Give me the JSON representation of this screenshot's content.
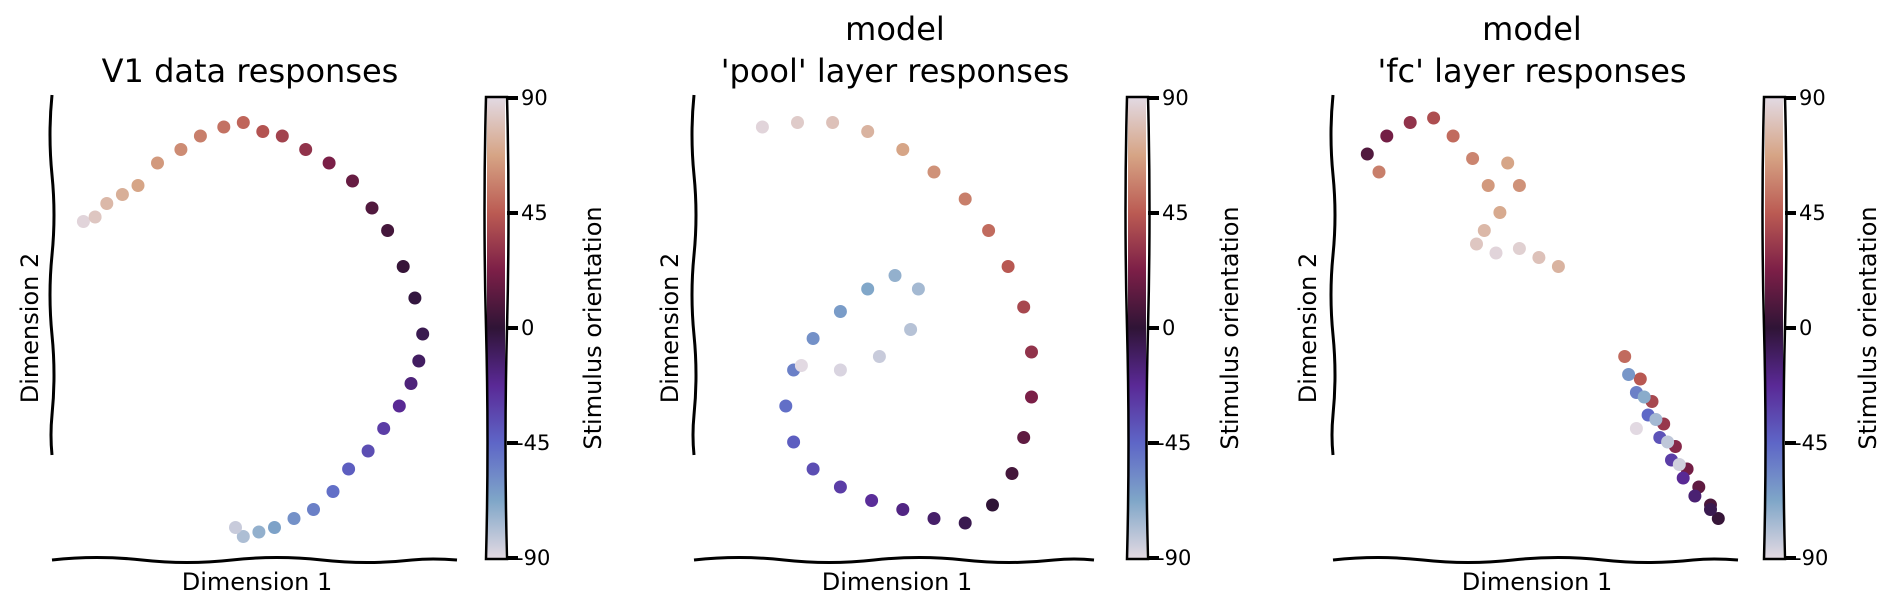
{
  "chart_data": [
    {
      "type": "scatter",
      "title": "V1 data responses",
      "xlabel": "Dimension 1",
      "ylabel": "Dimension 2",
      "colorbar": {
        "label": "Stimulus orientation",
        "ticks": [
          "90",
          "45",
          "0",
          "-45",
          "-90"
        ],
        "range": [
          -90,
          90
        ]
      },
      "xlim": [
        0,
        10
      ],
      "ylim": [
        0,
        10
      ],
      "points": [
        [
          0.6,
          7.3,
          88
        ],
        [
          0.9,
          7.4,
          82
        ],
        [
          1.2,
          7.7,
          76
        ],
        [
          1.6,
          7.9,
          72
        ],
        [
          2.0,
          8.1,
          68
        ],
        [
          2.5,
          8.6,
          64
        ],
        [
          3.1,
          8.9,
          60
        ],
        [
          3.6,
          9.2,
          56
        ],
        [
          4.2,
          9.4,
          52
        ],
        [
          4.7,
          9.5,
          48
        ],
        [
          5.2,
          9.3,
          42
        ],
        [
          5.7,
          9.2,
          36
        ],
        [
          6.3,
          8.9,
          30
        ],
        [
          6.9,
          8.6,
          22
        ],
        [
          7.5,
          8.2,
          16
        ],
        [
          8.0,
          7.6,
          10
        ],
        [
          8.4,
          7.1,
          6
        ],
        [
          8.8,
          6.3,
          2
        ],
        [
          9.1,
          5.6,
          -2
        ],
        [
          9.3,
          4.8,
          -6
        ],
        [
          9.2,
          4.2,
          -10
        ],
        [
          9.0,
          3.7,
          -16
        ],
        [
          8.7,
          3.2,
          -22
        ],
        [
          8.3,
          2.7,
          -30
        ],
        [
          7.9,
          2.2,
          -36
        ],
        [
          7.4,
          1.8,
          -42
        ],
        [
          7.0,
          1.3,
          -48
        ],
        [
          6.5,
          0.9,
          -54
        ],
        [
          6.0,
          0.7,
          -60
        ],
        [
          5.5,
          0.5,
          -66
        ],
        [
          5.1,
          0.4,
          -72
        ],
        [
          4.7,
          0.3,
          -78
        ],
        [
          4.5,
          0.5,
          -84
        ]
      ]
    },
    {
      "type": "scatter",
      "title": "model\n'pool' layer responses",
      "xlabel": "Dimension 1",
      "ylabel": "Dimension 2",
      "colorbar": {
        "label": "Stimulus orientation",
        "ticks": [
          "90",
          "45",
          "0",
          "-45",
          "-90"
        ],
        "range": [
          -90,
          90
        ]
      },
      "xlim": [
        0,
        10
      ],
      "ylim": [
        0,
        10
      ],
      "points": [
        [
          1.6,
          9.4,
          88
        ],
        [
          2.5,
          9.5,
          84
        ],
        [
          3.4,
          9.5,
          80
        ],
        [
          4.3,
          9.3,
          74
        ],
        [
          5.2,
          8.9,
          68
        ],
        [
          6.0,
          8.4,
          62
        ],
        [
          6.8,
          7.8,
          56
        ],
        [
          7.4,
          7.1,
          50
        ],
        [
          7.9,
          6.3,
          44
        ],
        [
          8.3,
          5.4,
          38
        ],
        [
          8.5,
          4.4,
          30
        ],
        [
          8.5,
          3.4,
          22
        ],
        [
          8.3,
          2.5,
          14
        ],
        [
          8.0,
          1.7,
          6
        ],
        [
          7.5,
          1.0,
          0
        ],
        [
          6.8,
          0.6,
          -6
        ],
        [
          6.0,
          0.7,
          -12
        ],
        [
          5.2,
          0.9,
          -18
        ],
        [
          4.4,
          1.1,
          -24
        ],
        [
          3.6,
          1.4,
          -30
        ],
        [
          2.9,
          1.8,
          -36
        ],
        [
          2.4,
          2.4,
          -42
        ],
        [
          2.2,
          3.2,
          -48
        ],
        [
          2.4,
          4.0,
          -54
        ],
        [
          2.9,
          4.7,
          -60
        ],
        [
          3.6,
          5.3,
          -64
        ],
        [
          4.3,
          5.8,
          -68
        ],
        [
          5.0,
          6.1,
          -72
        ],
        [
          5.6,
          5.8,
          -76
        ],
        [
          5.4,
          4.9,
          -80
        ],
        [
          4.6,
          4.3,
          -84
        ],
        [
          3.6,
          4.0,
          -88
        ],
        [
          2.6,
          4.1,
          -90
        ]
      ]
    },
    {
      "type": "scatter",
      "title": "model\n'fc' layer responses",
      "xlabel": "Dimension 1",
      "ylabel": "Dimension 2",
      "colorbar": {
        "label": "Stimulus orientation",
        "ticks": [
          "90",
          "45",
          "0",
          "-45",
          "-90"
        ],
        "range": [
          -90,
          90
        ]
      },
      "xlim": [
        0,
        10
      ],
      "ylim": [
        0,
        10
      ],
      "points": [
        [
          0.7,
          8.8,
          10
        ],
        [
          1.2,
          9.2,
          20
        ],
        [
          1.8,
          9.5,
          30
        ],
        [
          2.4,
          9.6,
          40
        ],
        [
          2.9,
          9.2,
          50
        ],
        [
          3.4,
          8.7,
          58
        ],
        [
          3.8,
          8.1,
          64
        ],
        [
          4.1,
          7.5,
          70
        ],
        [
          3.7,
          7.1,
          76
        ],
        [
          3.5,
          6.8,
          82
        ],
        [
          4.0,
          6.6,
          88
        ],
        [
          4.6,
          6.7,
          86
        ],
        [
          5.1,
          6.5,
          80
        ],
        [
          5.6,
          6.3,
          74
        ],
        [
          4.3,
          8.6,
          68
        ],
        [
          4.6,
          8.1,
          62
        ],
        [
          1.0,
          8.4,
          56
        ],
        [
          7.3,
          4.3,
          50
        ],
        [
          7.7,
          3.8,
          44
        ],
        [
          8.0,
          3.3,
          38
        ],
        [
          8.3,
          2.8,
          32
        ],
        [
          8.6,
          2.3,
          26
        ],
        [
          8.9,
          1.8,
          20
        ],
        [
          9.2,
          1.4,
          14
        ],
        [
          9.5,
          1.0,
          8
        ],
        [
          9.7,
          0.7,
          2
        ],
        [
          9.5,
          0.9,
          -6
        ],
        [
          9.1,
          1.2,
          -14
        ],
        [
          8.8,
          1.6,
          -22
        ],
        [
          8.5,
          2.0,
          -30
        ],
        [
          8.2,
          2.5,
          -38
        ],
        [
          7.9,
          3.0,
          -46
        ],
        [
          7.6,
          3.5,
          -54
        ],
        [
          7.4,
          3.9,
          -62
        ],
        [
          7.8,
          3.4,
          -70
        ],
        [
          8.1,
          2.9,
          -76
        ],
        [
          8.4,
          2.4,
          -82
        ],
        [
          8.7,
          1.9,
          -86
        ],
        [
          7.6,
          2.7,
          -90
        ]
      ]
    }
  ]
}
